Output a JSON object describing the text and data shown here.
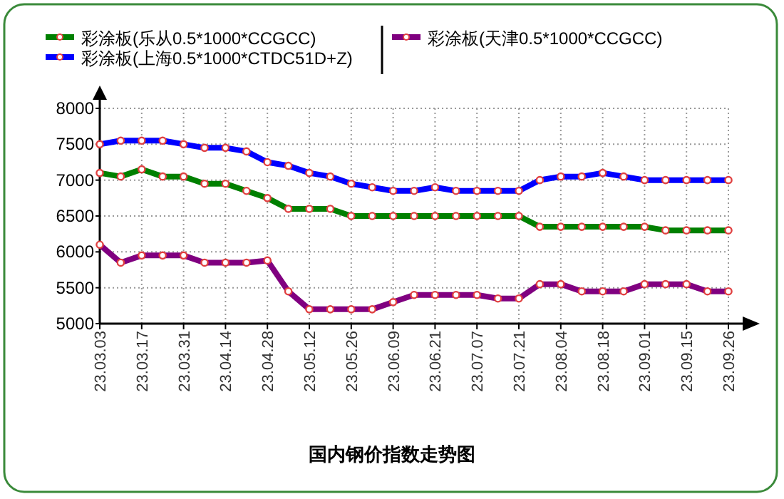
{
  "chart_data": {
    "type": "line",
    "title": "国内钢价指数走势图",
    "categories": [
      "23.03.03",
      null,
      "23.03.17",
      null,
      "23.03.31",
      null,
      "23.04.14",
      null,
      "23.04.28",
      null,
      "23.05.12",
      null,
      "23.05.26",
      null,
      "23.06.09",
      null,
      "23.06.21",
      null,
      "23.07.07",
      null,
      "23.07.21",
      null,
      "23.08.04",
      null,
      "23.08.18",
      null,
      "23.09.01",
      null,
      "23.09.15",
      null,
      "23.09.26"
    ],
    "series": [
      {
        "name": "彩涂板(乐从0.5*1000*CCGCC)",
        "color": "#008000",
        "values": [
          7100,
          7050,
          7150,
          7050,
          7050,
          6950,
          6950,
          6850,
          6750,
          6600,
          6600,
          6600,
          6500,
          6500,
          6500,
          6500,
          6500,
          6500,
          6500,
          6500,
          6500,
          6350,
          6350,
          6350,
          6350,
          6350,
          6350,
          6300,
          6300,
          6300,
          6300
        ]
      },
      {
        "name": "彩涂板(上海0.5*1000*CTDC51D+Z)",
        "color": "#0000ff",
        "values": [
          7500,
          7550,
          7550,
          7550,
          7500,
          7450,
          7450,
          7400,
          7250,
          7200,
          7100,
          7050,
          6950,
          6900,
          6850,
          6850,
          6900,
          6850,
          6850,
          6850,
          6850,
          7000,
          7050,
          7050,
          7100,
          7050,
          7000,
          7000,
          7000,
          7000,
          7000
        ]
      },
      {
        "name": "彩涂板(天津0.5*1000*CCGCC)",
        "color": "#800080",
        "values": [
          6100,
          5850,
          5950,
          5950,
          5950,
          5850,
          5850,
          5850,
          5880,
          5450,
          5200,
          5200,
          5200,
          5200,
          5300,
          5400,
          5400,
          5400,
          5400,
          5350,
          5350,
          5550,
          5550,
          5450,
          5450,
          5450,
          5550,
          5550,
          5550,
          5450,
          5450
        ]
      }
    ],
    "ylim": [
      5000,
      8000
    ],
    "yticks": [
      5000,
      5500,
      6000,
      6500,
      7000,
      7500,
      8000
    ],
    "grid": true,
    "legend": "top",
    "marker": "circle",
    "line_style": "solid"
  }
}
